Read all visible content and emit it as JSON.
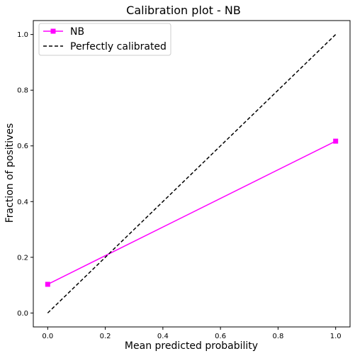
{
  "chart_data": {
    "type": "line",
    "title": "Calibration plot - NB",
    "xlabel": "Mean predicted probability",
    "ylabel": "Fraction of positives",
    "xlim": [
      -0.05,
      1.05
    ],
    "ylim": [
      -0.05,
      1.05
    ],
    "xticks": [
      "0.0",
      "0.2",
      "0.4",
      "0.6",
      "0.8",
      "1.0"
    ],
    "yticks": [
      "0.0",
      "0.2",
      "0.4",
      "0.6",
      "0.8",
      "1.0"
    ],
    "grid": false,
    "legend_position": "top-left",
    "series": [
      {
        "name": "NB",
        "color": "#ff00ff",
        "marker": "square",
        "linestyle": "solid",
        "x": [
          0.0,
          1.0
        ],
        "y": [
          0.103,
          0.617
        ]
      },
      {
        "name": "Perfectly calibrated",
        "color": "#000000",
        "marker": "none",
        "linestyle": "dashed",
        "x": [
          0.0,
          1.0
        ],
        "y": [
          0.0,
          1.0
        ]
      }
    ]
  }
}
